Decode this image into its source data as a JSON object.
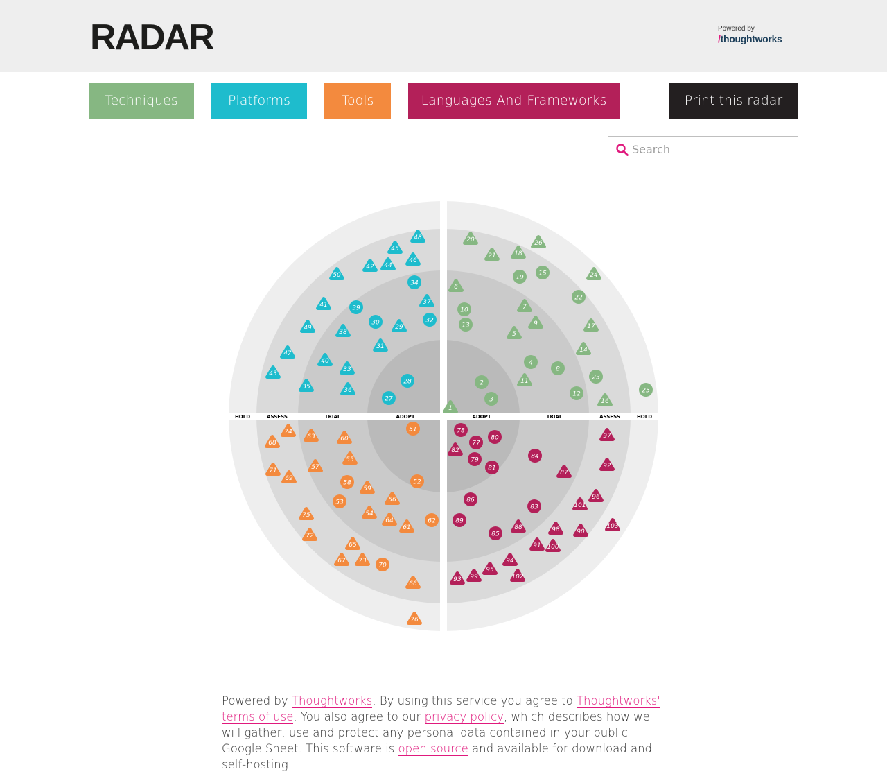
{
  "header": {
    "logo": "RADAR",
    "powered_small": "Powered by",
    "powered_brand": "thoughtworks"
  },
  "nav": {
    "techniques": "Techniques",
    "platforms": "Platforms",
    "tools": "Tools",
    "languages": "Languages-And-Frameworks",
    "print": "Print this radar"
  },
  "colors": {
    "techniques": "#86b782",
    "platforms": "#1ebccd",
    "tools": "#f38a3e",
    "languages": "#b32059",
    "print": "#231f20",
    "accent": "#e0197d"
  },
  "search": {
    "placeholder": "Search",
    "icon": "search-icon"
  },
  "radar": {
    "rings": [
      "ADOPT",
      "TRIAL",
      "ASSESS",
      "HOLD"
    ],
    "quadrants": {
      "techniques": [
        {
          "id": 1,
          "ring": "ADOPT",
          "shape": "triangle"
        },
        {
          "id": 2,
          "ring": "ADOPT",
          "shape": "circle"
        },
        {
          "id": 3,
          "ring": "ADOPT",
          "shape": "circle"
        },
        {
          "id": 4,
          "ring": "TRIAL",
          "shape": "circle"
        },
        {
          "id": 5,
          "ring": "TRIAL",
          "shape": "triangle"
        },
        {
          "id": 6,
          "ring": "TRIAL",
          "shape": "triangle"
        },
        {
          "id": 7,
          "ring": "TRIAL",
          "shape": "triangle"
        },
        {
          "id": 8,
          "ring": "TRIAL",
          "shape": "circle"
        },
        {
          "id": 9,
          "ring": "TRIAL",
          "shape": "triangle"
        },
        {
          "id": 10,
          "ring": "TRIAL",
          "shape": "circle"
        },
        {
          "id": 11,
          "ring": "TRIAL",
          "shape": "triangle"
        },
        {
          "id": 12,
          "ring": "TRIAL",
          "shape": "circle"
        },
        {
          "id": 13,
          "ring": "TRIAL",
          "shape": "circle"
        },
        {
          "id": 14,
          "ring": "ASSESS",
          "shape": "triangle"
        },
        {
          "id": 15,
          "ring": "ASSESS",
          "shape": "circle"
        },
        {
          "id": 16,
          "ring": "ASSESS",
          "shape": "triangle"
        },
        {
          "id": 17,
          "ring": "ASSESS",
          "shape": "triangle"
        },
        {
          "id": 18,
          "ring": "ASSESS",
          "shape": "triangle"
        },
        {
          "id": 19,
          "ring": "ASSESS",
          "shape": "circle"
        },
        {
          "id": 20,
          "ring": "ASSESS",
          "shape": "triangle"
        },
        {
          "id": 21,
          "ring": "ASSESS",
          "shape": "triangle"
        },
        {
          "id": 22,
          "ring": "ASSESS",
          "shape": "circle"
        },
        {
          "id": 23,
          "ring": "ASSESS",
          "shape": "circle"
        },
        {
          "id": 24,
          "ring": "HOLD",
          "shape": "triangle"
        },
        {
          "id": 25,
          "ring": "HOLD",
          "shape": "circle"
        },
        {
          "id": 26,
          "ring": "HOLD",
          "shape": "triangle"
        }
      ],
      "platforms": [
        {
          "id": 27,
          "ring": "ADOPT",
          "shape": "circle"
        },
        {
          "id": 28,
          "ring": "ADOPT",
          "shape": "circle"
        },
        {
          "id": 29,
          "ring": "TRIAL",
          "shape": "triangle"
        },
        {
          "id": 30,
          "ring": "TRIAL",
          "shape": "circle"
        },
        {
          "id": 31,
          "ring": "TRIAL",
          "shape": "triangle"
        },
        {
          "id": 32,
          "ring": "TRIAL",
          "shape": "circle"
        },
        {
          "id": 33,
          "ring": "TRIAL",
          "shape": "triangle"
        },
        {
          "id": 34,
          "ring": "TRIAL",
          "shape": "circle"
        },
        {
          "id": 35,
          "ring": "ASSESS",
          "shape": "triangle"
        },
        {
          "id": 36,
          "ring": "TRIAL",
          "shape": "triangle"
        },
        {
          "id": 37,
          "ring": "TRIAL",
          "shape": "triangle"
        },
        {
          "id": 38,
          "ring": "TRIAL",
          "shape": "triangle"
        },
        {
          "id": 39,
          "ring": "TRIAL",
          "shape": "circle"
        },
        {
          "id": 40,
          "ring": "TRIAL",
          "shape": "triangle"
        },
        {
          "id": 41,
          "ring": "ASSESS",
          "shape": "triangle"
        },
        {
          "id": 42,
          "ring": "ASSESS",
          "shape": "triangle"
        },
        {
          "id": 43,
          "ring": "ASSESS",
          "shape": "triangle"
        },
        {
          "id": 44,
          "ring": "ASSESS",
          "shape": "triangle"
        },
        {
          "id": 45,
          "ring": "ASSESS",
          "shape": "triangle"
        },
        {
          "id": 46,
          "ring": "ASSESS",
          "shape": "triangle"
        },
        {
          "id": 47,
          "ring": "ASSESS",
          "shape": "triangle"
        },
        {
          "id": 48,
          "ring": "HOLD",
          "shape": "triangle"
        },
        {
          "id": 49,
          "ring": "ASSESS",
          "shape": "triangle"
        },
        {
          "id": 50,
          "ring": "ASSESS",
          "shape": "triangle"
        }
      ],
      "tools": [
        {
          "id": 51,
          "ring": "ADOPT",
          "shape": "circle"
        },
        {
          "id": 52,
          "ring": "ADOPT",
          "shape": "circle"
        },
        {
          "id": 53,
          "ring": "TRIAL",
          "shape": "circle"
        },
        {
          "id": 54,
          "ring": "TRIAL",
          "shape": "triangle"
        },
        {
          "id": 55,
          "ring": "TRIAL",
          "shape": "triangle"
        },
        {
          "id": 56,
          "ring": "TRIAL",
          "shape": "triangle"
        },
        {
          "id": 57,
          "ring": "TRIAL",
          "shape": "triangle"
        },
        {
          "id": 58,
          "ring": "TRIAL",
          "shape": "circle"
        },
        {
          "id": 59,
          "ring": "TRIAL",
          "shape": "triangle"
        },
        {
          "id": 60,
          "ring": "TRIAL",
          "shape": "triangle"
        },
        {
          "id": 61,
          "ring": "TRIAL",
          "shape": "triangle"
        },
        {
          "id": 62,
          "ring": "TRIAL",
          "shape": "circle"
        },
        {
          "id": 63,
          "ring": "TRIAL",
          "shape": "triangle"
        },
        {
          "id": 64,
          "ring": "TRIAL",
          "shape": "triangle"
        },
        {
          "id": 65,
          "ring": "ASSESS",
          "shape": "triangle"
        },
        {
          "id": 66,
          "ring": "ASSESS",
          "shape": "triangle"
        },
        {
          "id": 67,
          "ring": "ASSESS",
          "shape": "triangle"
        },
        {
          "id": 68,
          "ring": "ASSESS",
          "shape": "triangle"
        },
        {
          "id": 69,
          "ring": "ASSESS",
          "shape": "triangle"
        },
        {
          "id": 70,
          "ring": "ASSESS",
          "shape": "circle"
        },
        {
          "id": 71,
          "ring": "ASSESS",
          "shape": "triangle"
        },
        {
          "id": 72,
          "ring": "ASSESS",
          "shape": "triangle"
        },
        {
          "id": 73,
          "ring": "ASSESS",
          "shape": "triangle"
        },
        {
          "id": 74,
          "ring": "ASSESS",
          "shape": "triangle"
        },
        {
          "id": 75,
          "ring": "ASSESS",
          "shape": "triangle"
        },
        {
          "id": 76,
          "ring": "HOLD",
          "shape": "triangle"
        }
      ],
      "languages": [
        {
          "id": 77,
          "ring": "ADOPT",
          "shape": "circle"
        },
        {
          "id": 78,
          "ring": "ADOPT",
          "shape": "circle"
        },
        {
          "id": 79,
          "ring": "ADOPT",
          "shape": "circle"
        },
        {
          "id": 80,
          "ring": "ADOPT",
          "shape": "circle"
        },
        {
          "id": 81,
          "ring": "ADOPT",
          "shape": "circle"
        },
        {
          "id": 82,
          "ring": "ADOPT",
          "shape": "triangle"
        },
        {
          "id": 83,
          "ring": "TRIAL",
          "shape": "circle"
        },
        {
          "id": 84,
          "ring": "TRIAL",
          "shape": "circle"
        },
        {
          "id": 85,
          "ring": "TRIAL",
          "shape": "circle"
        },
        {
          "id": 86,
          "ring": "TRIAL",
          "shape": "circle"
        },
        {
          "id": 87,
          "ring": "TRIAL",
          "shape": "triangle"
        },
        {
          "id": 88,
          "ring": "TRIAL",
          "shape": "triangle"
        },
        {
          "id": 89,
          "ring": "TRIAL",
          "shape": "circle"
        },
        {
          "id": 90,
          "ring": "ASSESS",
          "shape": "triangle"
        },
        {
          "id": 91,
          "ring": "ASSESS",
          "shape": "triangle"
        },
        {
          "id": 92,
          "ring": "ASSESS",
          "shape": "triangle"
        },
        {
          "id": 93,
          "ring": "ASSESS",
          "shape": "triangle"
        },
        {
          "id": 94,
          "ring": "ASSESS",
          "shape": "triangle"
        },
        {
          "id": 95,
          "ring": "ASSESS",
          "shape": "triangle"
        },
        {
          "id": 96,
          "ring": "ASSESS",
          "shape": "triangle"
        },
        {
          "id": 97,
          "ring": "ASSESS",
          "shape": "triangle"
        },
        {
          "id": 98,
          "ring": "ASSESS",
          "shape": "triangle"
        },
        {
          "id": 99,
          "ring": "ASSESS",
          "shape": "triangle"
        },
        {
          "id": 100,
          "ring": "ASSESS",
          "shape": "triangle"
        },
        {
          "id": 101,
          "ring": "ASSESS",
          "shape": "triangle"
        },
        {
          "id": 102,
          "ring": "ASSESS",
          "shape": "triangle"
        },
        {
          "id": 103,
          "ring": "HOLD",
          "shape": "triangle"
        }
      ]
    }
  },
  "footer": {
    "t1": "Powered by ",
    "link1": "Thoughtworks",
    "t2": ". By using this service you agree to ",
    "link2": "Thoughtworks' terms of use",
    "t3": ". You also agree to our ",
    "link3": "privacy policy",
    "t4": ", which describes how we will gather, use and protect any personal data contained in your public Google Sheet. This software is ",
    "link4": "open source",
    "t5": " and available for download and self-hosting."
  }
}
